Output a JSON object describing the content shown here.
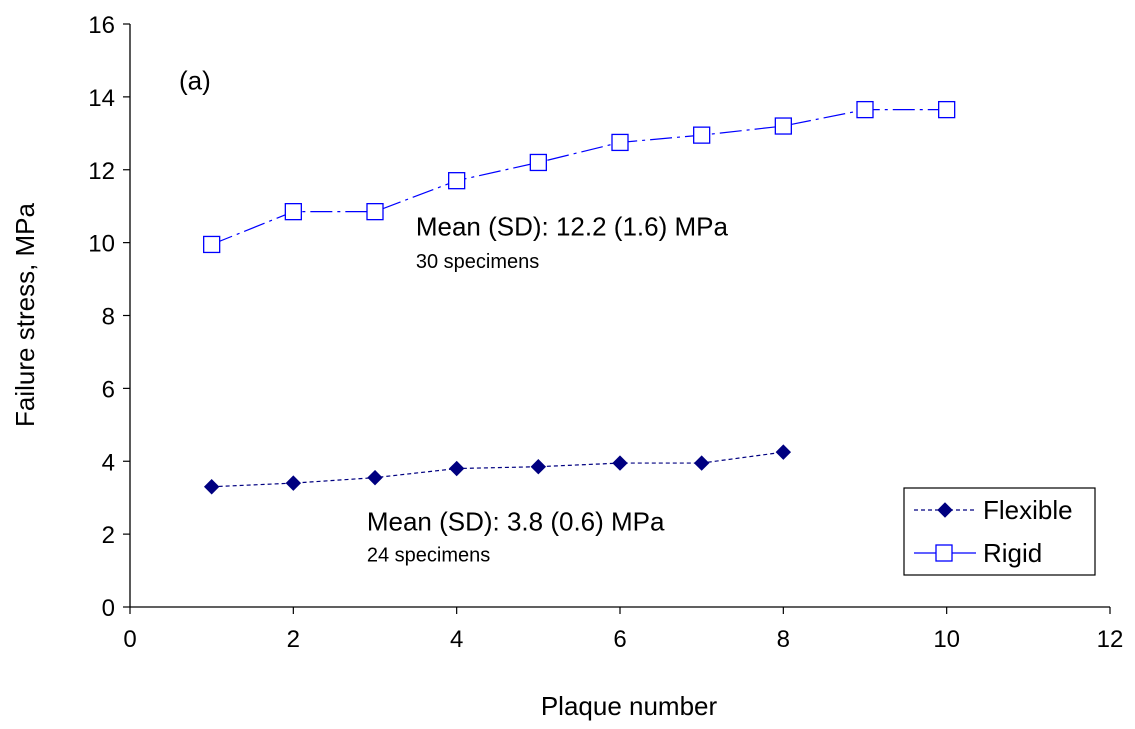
{
  "chart_data": {
    "type": "line",
    "xlabel": "Plaque number",
    "ylabel": "Failure stress, MPa",
    "xlim": [
      0,
      12
    ],
    "ylim": [
      0,
      16
    ],
    "xticks": [
      0,
      2,
      4,
      6,
      8,
      10,
      12
    ],
    "yticks": [
      0,
      2,
      4,
      6,
      8,
      10,
      12,
      14,
      16
    ],
    "grid": false,
    "legend_position": "bottom-right",
    "series": [
      {
        "name": "Flexible",
        "marker": "diamond-filled",
        "line_style": "dashed",
        "color": "#000080",
        "x": [
          1,
          2,
          3,
          4,
          5,
          6,
          7,
          8
        ],
        "y": [
          3.3,
          3.4,
          3.55,
          3.8,
          3.85,
          3.95,
          3.95,
          4.25
        ]
      },
      {
        "name": "Rigid",
        "marker": "square-open",
        "line_style": "long-dash-dot",
        "color": "#0000ff",
        "x": [
          1,
          2,
          3,
          4,
          5,
          6,
          7,
          8,
          9,
          10
        ],
        "y": [
          9.95,
          10.85,
          10.85,
          11.7,
          12.2,
          12.75,
          12.95,
          13.2,
          13.65,
          13.65
        ]
      }
    ],
    "annotations": [
      {
        "id": "panel",
        "text": "(a)",
        "x": 0.6,
        "y": 14.2
      },
      {
        "id": "rigid-mean",
        "text": "Mean (SD): 12.2 (1.6) MPa",
        "x": 3.5,
        "y": 10.2
      },
      {
        "id": "rigid-count",
        "text": "30 specimens",
        "x": 3.5,
        "y": 9.3
      },
      {
        "id": "flex-mean",
        "text": "Mean (SD): 3.8 (0.6) MPa",
        "x": 2.9,
        "y": 2.1
      },
      {
        "id": "flex-count",
        "text": "24 specimens",
        "x": 2.9,
        "y": 1.25
      }
    ]
  }
}
